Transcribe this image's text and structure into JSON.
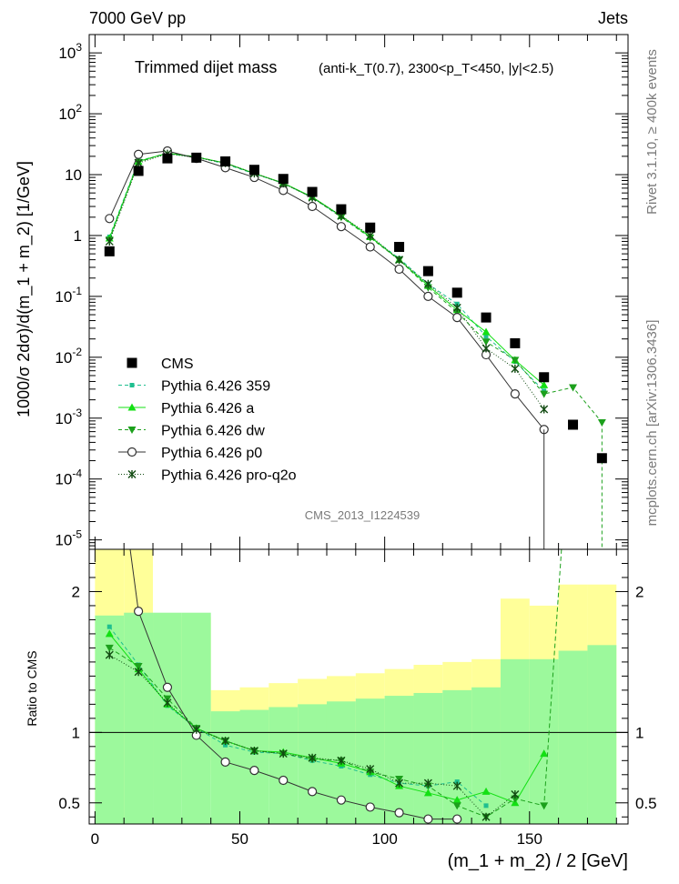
{
  "header": {
    "left_label": "7000 GeV pp",
    "right_label": "Jets",
    "side_top": "Rivet 3.1.10, ≥ 400k events",
    "side_bottom": "mcplots.cern.ch [arXiv:1306.3436]"
  },
  "chart_data": [
    {
      "type": "scatter",
      "title": "Trimmed dijet mass",
      "subtitle": "(anti-k_T(0.7), 2300<p_T<450, |y|<2.5)",
      "analysis_id": "CMS_2013_I1224539",
      "xlabel": "(m_1 + m_2) / 2 [GeV]",
      "ylabel": "1000/σ 2dσ)/d(m_1 + m_2) [1/GeV]",
      "yscale": "log",
      "xlim": [
        -2,
        184
      ],
      "ylim": [
        7e-06,
        2000
      ],
      "legend_position": "left-middle",
      "x": [
        5,
        15,
        25,
        35,
        45,
        55,
        65,
        75,
        85,
        95,
        105,
        115,
        125,
        135,
        145,
        155,
        165,
        175
      ],
      "series": [
        {
          "name": "CMS",
          "style": "square",
          "color": "#000000",
          "values": [
            0.55,
            11.5,
            18.5,
            19.0,
            16.5,
            12.0,
            8.5,
            5.2,
            2.7,
            1.35,
            0.65,
            0.26,
            0.115,
            0.045,
            0.017,
            0.0047,
            0.00078,
            0.00022
          ]
        },
        {
          "name": "Pythia 6.426 359",
          "style": "small-square-dashed",
          "color": "#1fbf8f",
          "values": [
            0.95,
            17.0,
            22.0,
            19.5,
            15.0,
            10.3,
            7.2,
            4.2,
            2.05,
            0.95,
            0.42,
            0.16,
            0.075,
            0.022,
            0.0085,
            0.0028,
            null,
            null
          ]
        },
        {
          "name": "Pythia 6.426 a",
          "style": "triangle-up-solid",
          "color": "#13e013",
          "values": [
            0.9,
            16.5,
            22.5,
            19.5,
            15.5,
            10.5,
            7.3,
            4.3,
            2.1,
            0.95,
            0.4,
            0.15,
            0.06,
            0.026,
            0.009,
            0.0035,
            null,
            null
          ]
        },
        {
          "name": "Pythia 6.426 dw",
          "style": "triangle-down-dashed",
          "color": "#1ca01c",
          "values": [
            0.85,
            16.0,
            23.0,
            19.5,
            15.5,
            10.5,
            7.2,
            4.2,
            2.0,
            0.92,
            0.4,
            0.14,
            0.055,
            0.018,
            0.009,
            0.0025,
            0.0032,
            0.00085
          ]
        },
        {
          "name": "Pythia 6.426 p0",
          "style": "open-circle-solid",
          "color": "#333333",
          "values": [
            1.9,
            21.5,
            24.5,
            18.5,
            13.0,
            9.0,
            5.5,
            3.0,
            1.4,
            0.65,
            0.28,
            0.1,
            0.045,
            0.011,
            0.0025,
            0.00065,
            null,
            null
          ]
        },
        {
          "name": "Pythia 6.426 pro-q2o",
          "style": "star-dotted",
          "color": "#124b12",
          "values": [
            0.8,
            15.5,
            22.0,
            19.0,
            15.5,
            10.5,
            7.2,
            4.2,
            2.1,
            1.0,
            0.4,
            0.16,
            0.065,
            0.014,
            0.0065,
            0.0014,
            null,
            null
          ]
        }
      ]
    },
    {
      "type": "line",
      "ylabel": "Ratio to CMS",
      "xlabel": "(m_1 + m_2) / 2 [GeV]",
      "xlim": [
        -2,
        184
      ],
      "ylim": [
        0.35,
        2.3
      ],
      "reference_line": 1,
      "x_tick_labels": [
        "0",
        "50",
        "100",
        "150"
      ],
      "y_tick_labels": [
        "0.5",
        "1",
        "2"
      ],
      "bin_edges": [
        0,
        10,
        20,
        30,
        40,
        50,
        60,
        70,
        80,
        90,
        100,
        110,
        120,
        130,
        140,
        150,
        160,
        170,
        180
      ],
      "band_stat": {
        "color": "#9cf99c",
        "lo": [
          0.3,
          0.3,
          0.3,
          0.3,
          0.3,
          0.3,
          0.3,
          0.3,
          0.3,
          0.3,
          0.3,
          0.3,
          0.3,
          0.3,
          0.3,
          0.3,
          0.3,
          0.3
        ],
        "hi": [
          1.83,
          1.85,
          1.85,
          1.85,
          1.15,
          1.16,
          1.18,
          1.2,
          1.22,
          1.24,
          1.26,
          1.28,
          1.3,
          1.32,
          1.52,
          1.52,
          1.58,
          1.62
        ]
      },
      "band_syst": {
        "color": "#ffff99",
        "lo": [
          0.3,
          0.3,
          0.6,
          0.7,
          0.8,
          0.8,
          0.8,
          0.8,
          0.8,
          0.8,
          0.8,
          0.8,
          0.8,
          0.8,
          0.5,
          0.5,
          0.5,
          0.5
        ],
        "hi": [
          2.4,
          2.4,
          1.82,
          1.82,
          1.3,
          1.32,
          1.35,
          1.38,
          1.4,
          1.42,
          1.45,
          1.48,
          1.5,
          1.52,
          1.95,
          1.9,
          2.05,
          2.05
        ]
      },
      "series": [
        {
          "name": "Pythia 6.426 359",
          "color": "#1fbf8f",
          "dash": "4,3",
          "values": [
            1.75,
            1.48,
            1.19,
            1.03,
            0.91,
            0.86,
            0.85,
            0.8,
            0.76,
            0.7,
            0.64,
            0.62,
            0.65,
            0.48,
            null,
            null,
            null,
            null
          ]
        },
        {
          "name": "Pythia 6.426 a",
          "color": "#13e013",
          "dash": "",
          "values": [
            1.7,
            1.45,
            1.2,
            1.03,
            0.94,
            0.87,
            0.86,
            0.82,
            0.78,
            0.72,
            0.62,
            0.57,
            0.52,
            0.58,
            0.5,
            0.85,
            null,
            null
          ]
        },
        {
          "name": "Pythia 6.426 dw",
          "color": "#1ca01c",
          "dash": "5,3",
          "values": [
            1.6,
            1.47,
            1.24,
            1.03,
            0.94,
            0.87,
            0.85,
            0.81,
            0.8,
            0.72,
            0.67,
            0.62,
            0.48,
            0.4,
            0.53,
            0.48,
            3.5,
            null
          ]
        },
        {
          "name": "Pythia 6.426 p0",
          "color": "#333333",
          "dash": "",
          "values": [
            3.4,
            1.86,
            1.32,
            0.98,
            0.79,
            0.73,
            0.66,
            0.58,
            0.52,
            0.47,
            0.43,
            0.385,
            0.385,
            null,
            null,
            null,
            null,
            null
          ]
        },
        {
          "name": "Pythia 6.426 pro-q2o",
          "color": "#124b12",
          "dash": "1,2",
          "values": [
            1.55,
            1.43,
            1.21,
            1.02,
            0.94,
            0.87,
            0.85,
            0.82,
            0.8,
            0.74,
            0.64,
            0.64,
            0.62,
            0.4,
            0.56,
            null,
            null,
            null
          ]
        }
      ]
    }
  ]
}
